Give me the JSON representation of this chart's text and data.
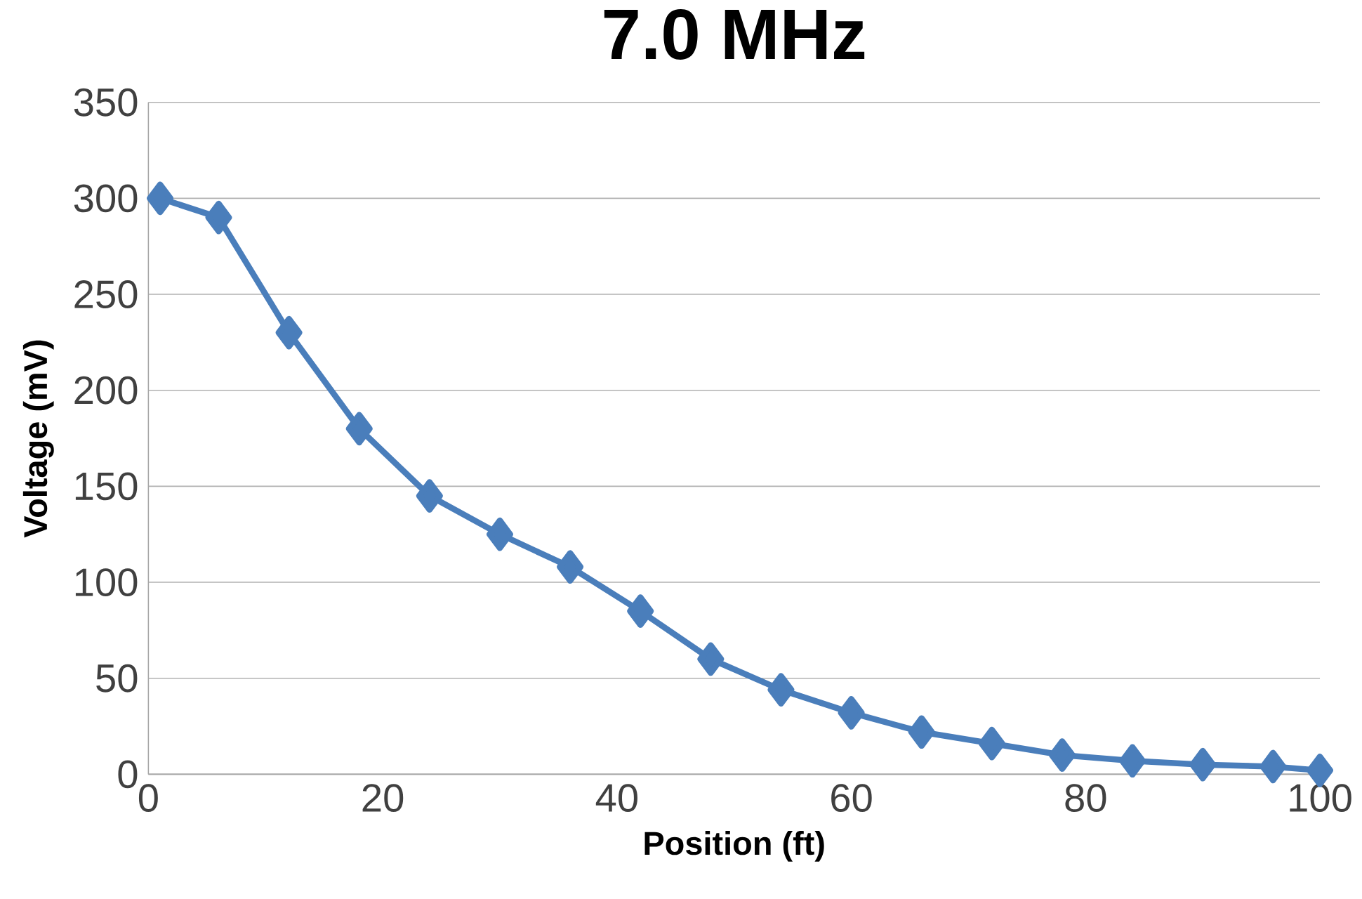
{
  "chart_data": {
    "type": "line",
    "title": "7.0 MHz",
    "xlabel": "Position (ft)",
    "ylabel": "Voltage (mV)",
    "x": [
      1,
      6,
      12,
      18,
      24,
      30,
      36,
      42,
      48,
      54,
      60,
      66,
      72,
      78,
      84,
      90,
      96,
      100
    ],
    "series": [
      {
        "color": "#4a7ebb",
        "values": [
          300,
          290,
          230,
          180,
          145,
          125,
          108,
          85,
          60,
          44,
          32,
          22,
          16,
          10,
          7,
          5,
          4,
          2
        ]
      }
    ],
    "xlim": [
      0,
      100
    ],
    "xticks": [
      0,
      20,
      40,
      60,
      80,
      100
    ],
    "ylim": [
      0,
      350
    ],
    "yticks": [
      0,
      50,
      100,
      150,
      200,
      250,
      300,
      350
    ],
    "grid": "y",
    "marker": "diamond",
    "line_style": "solid"
  }
}
